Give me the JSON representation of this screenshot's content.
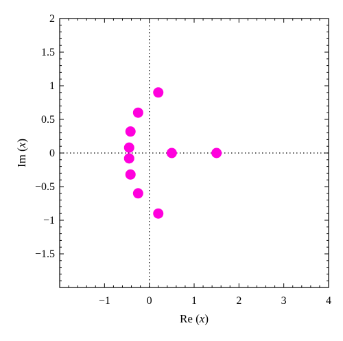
{
  "chart_data": {
    "type": "scatter",
    "title": "",
    "xlabel": {
      "prefix": "Re",
      "open": " (",
      "var": "x",
      "close": ")"
    },
    "ylabel": {
      "prefix": "Im",
      "open": " (",
      "var": "x",
      "close": ")"
    },
    "xlim": [
      -2,
      4
    ],
    "ylim": [
      -2,
      2
    ],
    "grid": false,
    "reference_lines": {
      "x": 0,
      "y": 0,
      "style": "dotted"
    },
    "x_ticks": [
      {
        "value": -1,
        "label": "−1"
      },
      {
        "value": 0,
        "label": "0"
      },
      {
        "value": 1,
        "label": "1"
      },
      {
        "value": 2,
        "label": "2"
      },
      {
        "value": 3,
        "label": "3"
      },
      {
        "value": 4,
        "label": "4"
      }
    ],
    "y_ticks": [
      {
        "value": 2,
        "label": "2"
      },
      {
        "value": 1.5,
        "label": "1.5"
      },
      {
        "value": 1,
        "label": "1"
      },
      {
        "value": 0.5,
        "label": "0.5"
      },
      {
        "value": 0,
        "label": "0"
      },
      {
        "value": -0.5,
        "label": "−0.5"
      },
      {
        "value": -1,
        "label": "−1"
      },
      {
        "value": -1.5,
        "label": "−1.5"
      }
    ],
    "marker_color": "#ff00dd",
    "series": [
      {
        "points": [
          {
            "x": 0.2,
            "y": 0.9
          },
          {
            "x": -0.25,
            "y": 0.6
          },
          {
            "x": -0.42,
            "y": 0.32
          },
          {
            "x": -0.45,
            "y": 0.08
          },
          {
            "x": 0.5,
            "y": 0.0
          },
          {
            "x": 1.5,
            "y": 0.0
          },
          {
            "x": -0.45,
            "y": -0.08
          },
          {
            "x": -0.42,
            "y": -0.32
          },
          {
            "x": -0.25,
            "y": -0.6
          },
          {
            "x": 0.2,
            "y": -0.9
          }
        ]
      }
    ]
  }
}
